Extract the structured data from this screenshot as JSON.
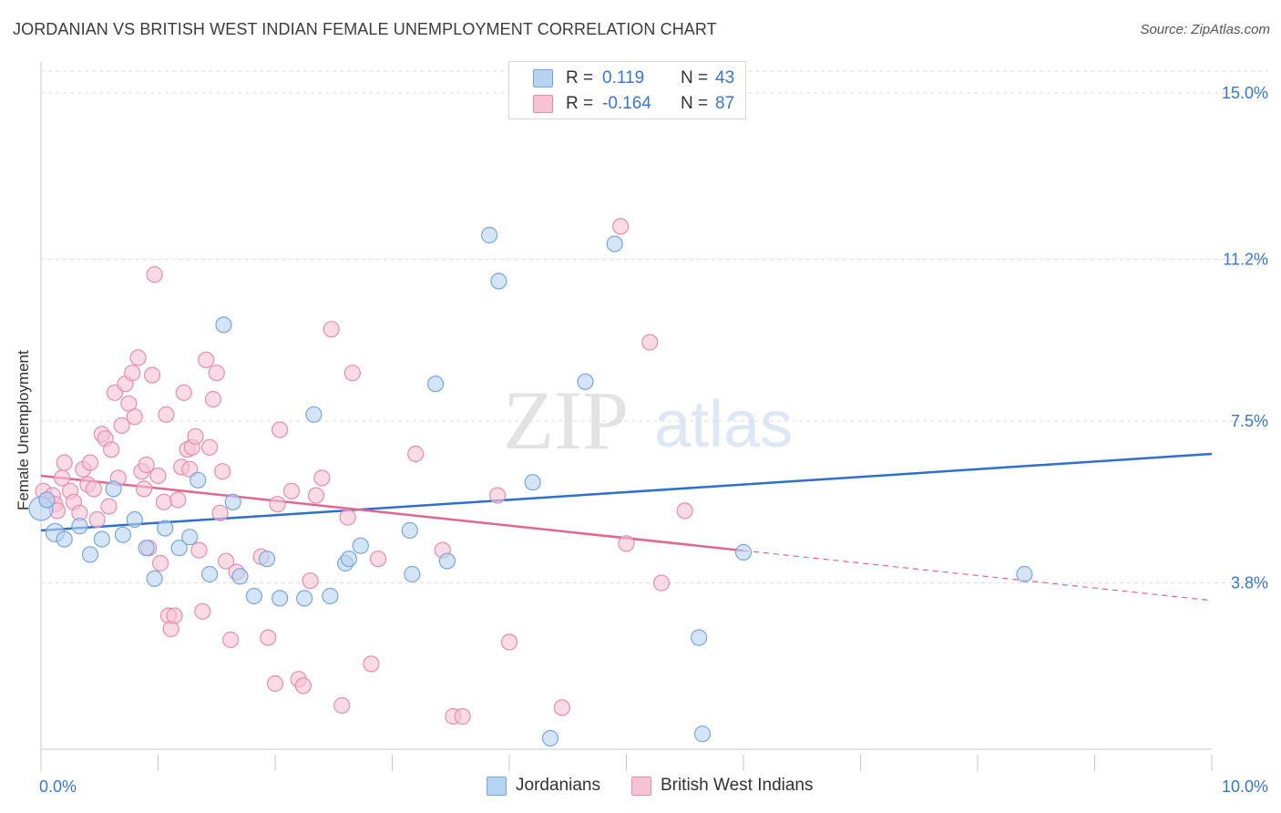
{
  "title": "JORDANIAN VS BRITISH WEST INDIAN FEMALE UNEMPLOYMENT CORRELATION CHART",
  "source": "Source: ZipAtlas.com",
  "watermark": {
    "zip": "ZIP",
    "atlas": "atlas"
  },
  "legend": {
    "jordanians": {
      "r_label": "R =",
      "r_value": "0.119",
      "n_label": "N =",
      "n_value": "43"
    },
    "bwi": {
      "r_label": "R =",
      "r_value": "-0.164",
      "n_label": "N =",
      "n_value": "87"
    }
  },
  "colors": {
    "jordanian_fill": "#b7d3f2",
    "jordanian_stroke": "#7aa6de",
    "jordanian_line": "#2e6fcf",
    "bwi_fill": "#f7c3d3",
    "bwi_stroke": "#e58fae",
    "bwi_line": "#e2678f",
    "axis_text": "#3a76d0"
  },
  "chart_data": {
    "type": "scatter",
    "xlabel": "",
    "ylabel": "Female Unemployment",
    "xlim": [
      0,
      10
    ],
    "ylim": [
      0,
      15.5
    ],
    "x_tick_labels": [
      "0.0%",
      "10.0%"
    ],
    "y_ticks": [
      3.8,
      7.5,
      11.2,
      15.0
    ],
    "y_tick_labels": [
      "3.8%",
      "7.5%",
      "11.2%",
      "15.0%"
    ],
    "grid": "horizontal dashed",
    "series": [
      {
        "name": "Jordanians",
        "r": 0.119,
        "n": 43,
        "trend": {
          "x0": 0.0,
          "y0": 5.0,
          "x1": 10.0,
          "y1": 6.75,
          "solid_to": 10.0
        },
        "points": [
          [
            0.0,
            5.5
          ],
          [
            0.05,
            5.7
          ],
          [
            0.12,
            4.95
          ],
          [
            0.2,
            4.8
          ],
          [
            0.33,
            5.1
          ],
          [
            0.42,
            4.45
          ],
          [
            0.52,
            4.8
          ],
          [
            0.62,
            5.95
          ],
          [
            0.7,
            4.9
          ],
          [
            0.8,
            5.25
          ],
          [
            0.9,
            4.6
          ],
          [
            0.97,
            3.9
          ],
          [
            1.06,
            5.05
          ],
          [
            1.18,
            4.6
          ],
          [
            1.27,
            4.85
          ],
          [
            1.34,
            6.15
          ],
          [
            1.44,
            4.0
          ],
          [
            1.56,
            9.7
          ],
          [
            1.64,
            5.65
          ],
          [
            1.7,
            3.95
          ],
          [
            1.82,
            3.5
          ],
          [
            1.93,
            4.35
          ],
          [
            2.04,
            3.45
          ],
          [
            2.25,
            3.45
          ],
          [
            2.33,
            7.65
          ],
          [
            2.47,
            3.5
          ],
          [
            2.6,
            4.25
          ],
          [
            2.63,
            4.35
          ],
          [
            2.73,
            4.65
          ],
          [
            3.15,
            5.0
          ],
          [
            3.17,
            4.0
          ],
          [
            3.37,
            8.35
          ],
          [
            3.47,
            4.3
          ],
          [
            3.83,
            11.75
          ],
          [
            3.91,
            10.7
          ],
          [
            4.2,
            6.1
          ],
          [
            4.35,
            0.25
          ],
          [
            4.65,
            8.4
          ],
          [
            4.9,
            11.55
          ],
          [
            5.62,
            2.55
          ],
          [
            5.65,
            0.35
          ],
          [
            6.0,
            4.5
          ],
          [
            8.4,
            4.0
          ]
        ]
      },
      {
        "name": "British West Indians",
        "r": -0.164,
        "n": 87,
        "trend": {
          "x0": 0.0,
          "y0": 6.25,
          "x1": 10.0,
          "y1": 3.4,
          "solid_to": 6.0
        },
        "points": [
          [
            0.02,
            5.9
          ],
          [
            0.05,
            5.7
          ],
          [
            0.1,
            5.8
          ],
          [
            0.12,
            5.6
          ],
          [
            0.14,
            5.45
          ],
          [
            0.18,
            6.2
          ],
          [
            0.2,
            6.55
          ],
          [
            0.25,
            5.9
          ],
          [
            0.28,
            5.65
          ],
          [
            0.33,
            5.4
          ],
          [
            0.36,
            6.4
          ],
          [
            0.4,
            6.05
          ],
          [
            0.42,
            6.55
          ],
          [
            0.45,
            5.95
          ],
          [
            0.48,
            5.25
          ],
          [
            0.52,
            7.2
          ],
          [
            0.55,
            7.1
          ],
          [
            0.58,
            5.55
          ],
          [
            0.6,
            6.85
          ],
          [
            0.63,
            8.15
          ],
          [
            0.66,
            6.2
          ],
          [
            0.69,
            7.4
          ],
          [
            0.72,
            8.35
          ],
          [
            0.75,
            7.9
          ],
          [
            0.78,
            8.6
          ],
          [
            0.8,
            7.6
          ],
          [
            0.83,
            8.95
          ],
          [
            0.86,
            6.35
          ],
          [
            0.88,
            5.95
          ],
          [
            0.9,
            6.5
          ],
          [
            0.92,
            4.6
          ],
          [
            0.95,
            8.55
          ],
          [
            0.97,
            10.85
          ],
          [
            1.0,
            6.25
          ],
          [
            1.02,
            4.25
          ],
          [
            1.05,
            5.65
          ],
          [
            1.07,
            7.65
          ],
          [
            1.09,
            3.05
          ],
          [
            1.11,
            2.75
          ],
          [
            1.14,
            3.05
          ],
          [
            1.17,
            5.7
          ],
          [
            1.2,
            6.45
          ],
          [
            1.22,
            8.15
          ],
          [
            1.25,
            6.85
          ],
          [
            1.27,
            6.4
          ],
          [
            1.29,
            6.9
          ],
          [
            1.32,
            7.15
          ],
          [
            1.35,
            4.55
          ],
          [
            1.38,
            3.15
          ],
          [
            1.41,
            8.9
          ],
          [
            1.44,
            6.9
          ],
          [
            1.47,
            8.0
          ],
          [
            1.5,
            8.6
          ],
          [
            1.53,
            5.4
          ],
          [
            1.55,
            6.35
          ],
          [
            1.58,
            4.3
          ],
          [
            1.62,
            2.5
          ],
          [
            1.67,
            4.05
          ],
          [
            1.88,
            4.4
          ],
          [
            1.94,
            2.55
          ],
          [
            2.0,
            1.5
          ],
          [
            2.02,
            5.6
          ],
          [
            2.04,
            7.3
          ],
          [
            2.14,
            5.9
          ],
          [
            2.2,
            1.6
          ],
          [
            2.24,
            1.45
          ],
          [
            2.3,
            3.85
          ],
          [
            2.35,
            5.8
          ],
          [
            2.4,
            6.2
          ],
          [
            2.48,
            9.6
          ],
          [
            2.57,
            1.0
          ],
          [
            2.62,
            5.3
          ],
          [
            2.66,
            8.6
          ],
          [
            2.82,
            1.95
          ],
          [
            2.88,
            4.35
          ],
          [
            3.2,
            6.75
          ],
          [
            3.43,
            4.55
          ],
          [
            3.52,
            0.75
          ],
          [
            3.6,
            0.75
          ],
          [
            3.9,
            5.8
          ],
          [
            4.0,
            2.45
          ],
          [
            4.45,
            0.95
          ],
          [
            4.95,
            11.95
          ],
          [
            5.0,
            4.7
          ],
          [
            5.2,
            9.3
          ],
          [
            5.3,
            3.8
          ],
          [
            5.5,
            5.45
          ]
        ]
      }
    ]
  },
  "bottom_legend": {
    "jordanians": "Jordanians",
    "bwi": "British West Indians"
  }
}
